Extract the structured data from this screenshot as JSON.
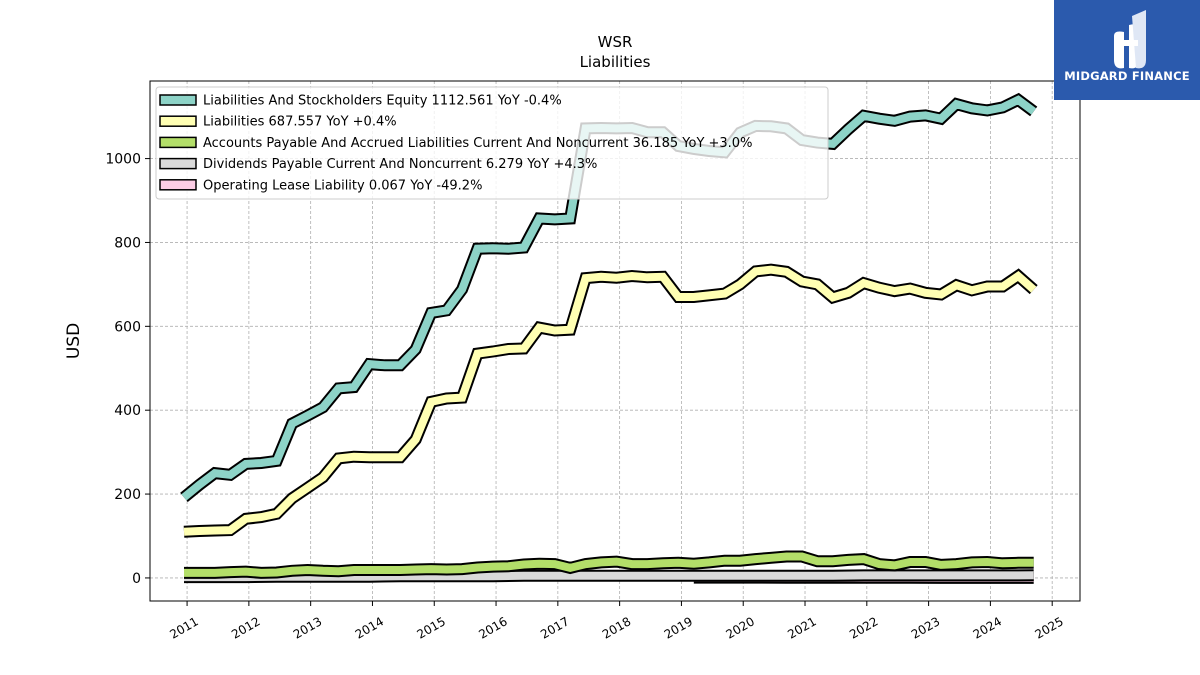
{
  "logo": {
    "text": "MIDGARD FINANCE",
    "background": "#2b5aad"
  },
  "chart_data": {
    "type": "line",
    "title": "WSR",
    "subtitle": "Liabilities",
    "ylabel": "USD",
    "xlim": [
      2010.4,
      2025.45
    ],
    "ylim": [
      -55,
      1185
    ],
    "yticks": [
      0,
      200,
      400,
      600,
      800,
      1000
    ],
    "xticks": [
      2011,
      2012,
      2013,
      2014,
      2015,
      2016,
      2017,
      2018,
      2019,
      2020,
      2021,
      2022,
      2023,
      2024,
      2025
    ],
    "grid": true,
    "legend_position": "top-left",
    "series": [
      {
        "name": "Liabilities And Stockholders Equity",
        "legend": "Liabilities And Stockholders Equity  1112.561 YoY -0.4%",
        "color": "#8dd3c7",
        "x": [
          2010.95,
          2011.2,
          2011.45,
          2011.7,
          2011.95,
          2012.2,
          2012.45,
          2012.7,
          2012.95,
          2013.2,
          2013.45,
          2013.7,
          2013.95,
          2014.2,
          2014.45,
          2014.7,
          2014.95,
          2015.2,
          2015.45,
          2015.7,
          2015.95,
          2016.2,
          2016.45,
          2016.7,
          2016.95,
          2017.2,
          2017.45,
          2017.7,
          2017.95,
          2018.2,
          2018.45,
          2018.7,
          2018.95,
          2019.2,
          2019.45,
          2019.7,
          2019.95,
          2020.2,
          2020.45,
          2020.7,
          2020.95,
          2021.2,
          2021.45,
          2021.7,
          2021.95,
          2022.2,
          2022.45,
          2022.7,
          2022.95,
          2023.2,
          2023.45,
          2023.7,
          2023.95,
          2024.2,
          2024.45,
          2024.7
        ],
        "values": [
          192,
          222,
          250,
          246,
          272,
          274,
          279,
          368,
          387,
          407,
          452,
          455,
          510,
          507,
          507,
          545,
          632,
          638,
          688,
          785,
          786,
          785,
          788,
          857,
          855,
          857,
          1072,
          1073,
          1072,
          1073,
          1063,
          1063,
          1030,
          1023,
          1018,
          1015,
          1062,
          1078,
          1077,
          1072,
          1044,
          1038,
          1035,
          1070,
          1102,
          1095,
          1090,
          1100,
          1103,
          1095,
          1130,
          1120,
          1115,
          1122,
          1140,
          1112.561
        ]
      },
      {
        "name": "Liabilities",
        "legend": "Liabilities  687.557 YoY +0.4%",
        "color": "#ffffb3",
        "x": [
          2010.95,
          2011.2,
          2011.45,
          2011.7,
          2011.95,
          2012.2,
          2012.45,
          2012.7,
          2012.95,
          2013.2,
          2013.45,
          2013.7,
          2013.95,
          2014.2,
          2014.45,
          2014.7,
          2014.95,
          2015.2,
          2015.45,
          2015.7,
          2015.95,
          2016.2,
          2016.45,
          2016.7,
          2016.95,
          2017.2,
          2017.45,
          2017.7,
          2017.95,
          2018.2,
          2018.45,
          2018.7,
          2018.95,
          2019.2,
          2019.45,
          2019.7,
          2019.95,
          2020.2,
          2020.45,
          2020.7,
          2020.95,
          2021.2,
          2021.45,
          2021.7,
          2021.95,
          2022.2,
          2022.45,
          2022.7,
          2022.95,
          2023.2,
          2023.45,
          2023.7,
          2023.95,
          2024.2,
          2024.45,
          2024.7
        ],
        "values": [
          110,
          112,
          113,
          114,
          141,
          145,
          153,
          190,
          215,
          240,
          285,
          289,
          288,
          288,
          288,
          330,
          420,
          428,
          430,
          535,
          540,
          546,
          547,
          597,
          590,
          592,
          715,
          718,
          716,
          720,
          717,
          718,
          670,
          670,
          674,
          678,
          700,
          731,
          735,
          730,
          707,
          700,
          669,
          680,
          703,
          692,
          684,
          690,
          680,
          676,
          698,
          686,
          695,
          695,
          720,
          687.557
        ]
      },
      {
        "name": "Accounts Payable And Accrued Liabilities Current And Noncurrent",
        "legend": "Accounts Payable And Accrued Liabilities Current And Noncurrent  36.185 YoY +3.0%",
        "color": "#b3de69",
        "x": [
          2010.95,
          2011.2,
          2011.45,
          2011.7,
          2011.95,
          2012.2,
          2012.45,
          2012.7,
          2012.95,
          2013.2,
          2013.45,
          2013.7,
          2013.95,
          2014.2,
          2014.45,
          2014.7,
          2014.95,
          2015.2,
          2015.45,
          2015.7,
          2015.95,
          2016.2,
          2016.45,
          2016.7,
          2016.95,
          2017.2,
          2017.45,
          2017.7,
          2017.95,
          2018.2,
          2018.45,
          2018.7,
          2018.95,
          2019.2,
          2019.45,
          2019.7,
          2019.95,
          2020.2,
          2020.45,
          2020.7,
          2020.95,
          2021.2,
          2021.45,
          2021.7,
          2021.95,
          2022.2,
          2022.45,
          2022.7,
          2022.95,
          2023.2,
          2023.45,
          2023.7,
          2023.95,
          2024.2,
          2024.45,
          2024.7
        ],
        "values": [
          12,
          12,
          12,
          14,
          15,
          12,
          13,
          17,
          19,
          17,
          16,
          19,
          19,
          19,
          19,
          20,
          21,
          20,
          21,
          25,
          27,
          28,
          32,
          34,
          33,
          24,
          33,
          37,
          39,
          33,
          33,
          35,
          36,
          34,
          37,
          41,
          41,
          45,
          48,
          51,
          51,
          40,
          40,
          43,
          45,
          33,
          30,
          38,
          38,
          31,
          33,
          37,
          38,
          35,
          36,
          36.185
        ]
      },
      {
        "name": "Dividends Payable Current And Noncurrent",
        "legend": "Dividends Payable Current And Noncurrent  6.279 YoY +4.3%",
        "color": "#d9d9d9",
        "x": [
          2010.95,
          2011.45,
          2011.95,
          2012.45,
          2012.95,
          2013.45,
          2013.95,
          2014.45,
          2014.95,
          2015.45,
          2015.95,
          2016.45,
          2016.95,
          2017.45,
          2017.95,
          2018.45,
          2018.95,
          2019.45,
          2019.95,
          2020.45,
          2020.95,
          2021.45,
          2021.95,
          2022.45,
          2022.95,
          2023.45,
          2023.95,
          2024.45,
          2024.7
        ],
        "values": [
          2,
          2,
          2,
          3,
          3,
          3,
          3,
          4,
          4,
          4,
          4,
          5,
          5,
          5,
          5,
          5,
          5,
          5,
          5,
          5,
          5,
          5,
          6,
          6,
          6,
          6,
          6,
          6,
          6.279
        ]
      },
      {
        "name": "Operating Lease Liability",
        "legend": "Operating Lease Liability  0.067 YoY -49.2%",
        "color": "#fccde5",
        "x": [
          2019.2,
          2019.7,
          2020.2,
          2020.7,
          2021.2,
          2021.7,
          2022.2,
          2022.7,
          2023.2,
          2023.7,
          2024.2,
          2024.7
        ],
        "values": [
          0.9,
          0.8,
          0.7,
          0.6,
          0.5,
          0.4,
          0.35,
          0.3,
          0.2,
          0.15,
          0.13,
          0.067
        ]
      }
    ]
  }
}
